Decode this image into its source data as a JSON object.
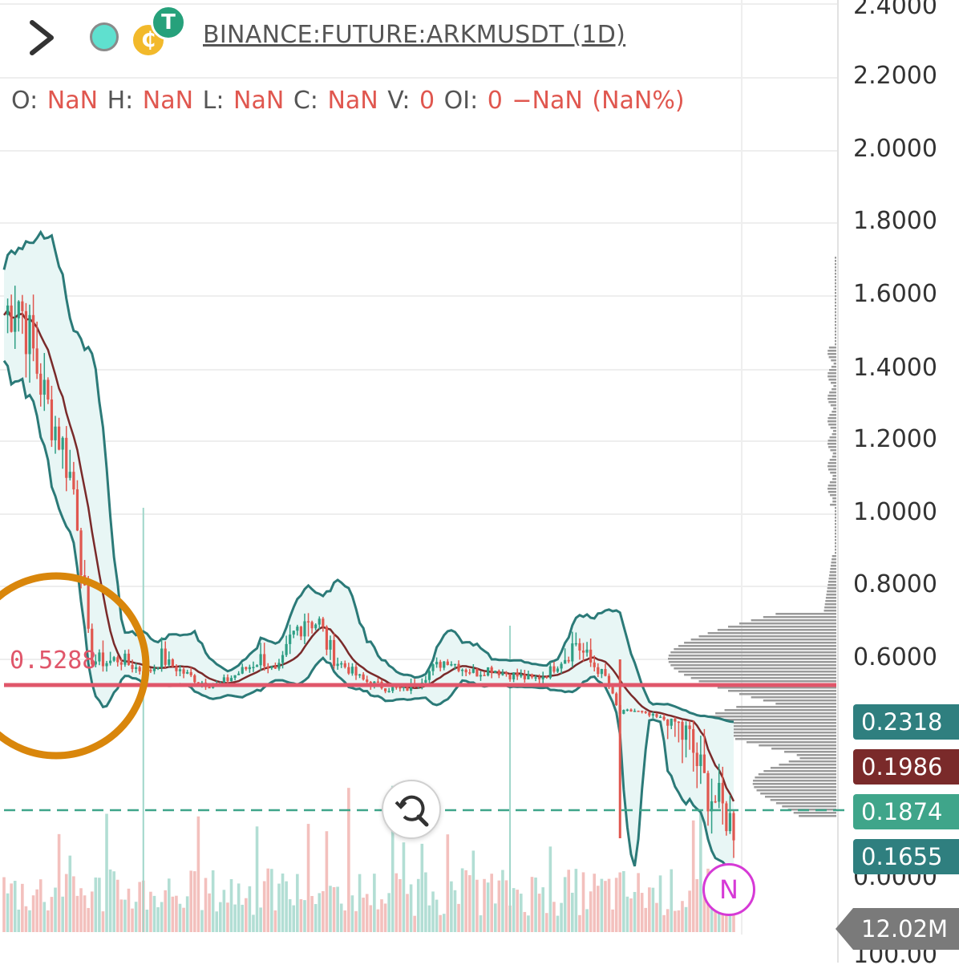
{
  "header": {
    "symbol": "BINANCE:FUTURE:ARKMUSDT (1D)",
    "coin_icon_glyph": "₵",
    "tether_icon_glyph": "T"
  },
  "ohlc": {
    "o_label": "O:",
    "o_value": "NaN",
    "h_label": "H:",
    "h_value": "NaN",
    "l_label": "L:",
    "l_value": "NaN",
    "c_label": "C:",
    "c_value": "NaN",
    "v_label": "V:",
    "v_value": "0",
    "oi_label": "OI:",
    "oi_value": "0",
    "change": "−NaN",
    "change_pct": "(NaN%)"
  },
  "price_labels": [
    {
      "text": "0.2318",
      "value": 0.2318,
      "color": "#2f7f7f"
    },
    {
      "text": "0.1986",
      "value": 0.1986,
      "color": "#7a2a2a"
    },
    {
      "text": "0.1874",
      "value": 0.1874,
      "color": "#3fa58a"
    },
    {
      "text": "0.1655",
      "value": 0.1655,
      "color": "#2f7f7f"
    }
  ],
  "volume_label": "12.02M",
  "indicator_badge": "N",
  "chart_data": {
    "type": "candlestick",
    "y_axis": {
      "ticks": [
        "2.4000",
        "2.2000",
        "2.0000",
        "1.8000",
        "1.6000",
        "1.4000",
        "1.2000",
        "1.0000",
        "0.8000",
        "0.6000",
        "0.0000",
        "100.00"
      ],
      "tick_values": [
        2.4,
        2.2,
        2.0,
        1.8,
        1.6,
        1.4,
        1.2,
        1.0,
        0.8,
        0.6
      ],
      "range": [
        0.16,
        2.4
      ]
    },
    "horizontal_level": {
      "value": 0.5288,
      "label": "0.5288",
      "color": "#e0566a"
    },
    "dashed_level": {
      "value": 0.1874,
      "color": "#3fa58a"
    },
    "price_path": [
      [
        0,
        1.55
      ],
      [
        3,
        1.6
      ],
      [
        6,
        1.45
      ],
      [
        9,
        1.3
      ],
      [
        12,
        1.2
      ],
      [
        15,
        1.05
      ],
      [
        18,
        0.6
      ],
      [
        21,
        0.58
      ],
      [
        24,
        0.6
      ],
      [
        27,
        0.56
      ],
      [
        30,
        0.52
      ],
      [
        33,
        0.6
      ],
      [
        36,
        0.55
      ],
      [
        39,
        0.5
      ],
      [
        42,
        0.46
      ],
      [
        45,
        0.45
      ],
      [
        48,
        0.5
      ],
      [
        51,
        0.55
      ],
      [
        54,
        0.6
      ],
      [
        57,
        0.52
      ],
      [
        60,
        0.65
      ],
      [
        63,
        0.72
      ],
      [
        66,
        0.7
      ],
      [
        69,
        0.6
      ],
      [
        72,
        0.55
      ],
      [
        75,
        0.48
      ],
      [
        78,
        0.45
      ],
      [
        81,
        0.43
      ],
      [
        84,
        0.42
      ],
      [
        87,
        0.47
      ],
      [
        90,
        0.55
      ],
      [
        93,
        0.6
      ],
      [
        96,
        0.55
      ],
      [
        99,
        0.52
      ],
      [
        102,
        0.55
      ],
      [
        105,
        0.52
      ],
      [
        108,
        0.5
      ],
      [
        111,
        0.48
      ],
      [
        114,
        0.52
      ],
      [
        117,
        0.6
      ],
      [
        120,
        0.65
      ],
      [
        123,
        0.58
      ],
      [
        126,
        0.5
      ],
      [
        129,
        0.28
      ],
      [
        132,
        0.3
      ],
      [
        135,
        0.27
      ],
      [
        138,
        0.25
      ],
      [
        141,
        0.23
      ],
      [
        144,
        0.22
      ],
      [
        147,
        0.2
      ],
      [
        150,
        0.19
      ],
      [
        153,
        0.18
      ]
    ],
    "colors": {
      "up": "#2e9e84",
      "down": "#e0574f",
      "band": "#2b7a78",
      "band_fill": "#e8f6f5",
      "ma": "#7a2a2a"
    }
  }
}
